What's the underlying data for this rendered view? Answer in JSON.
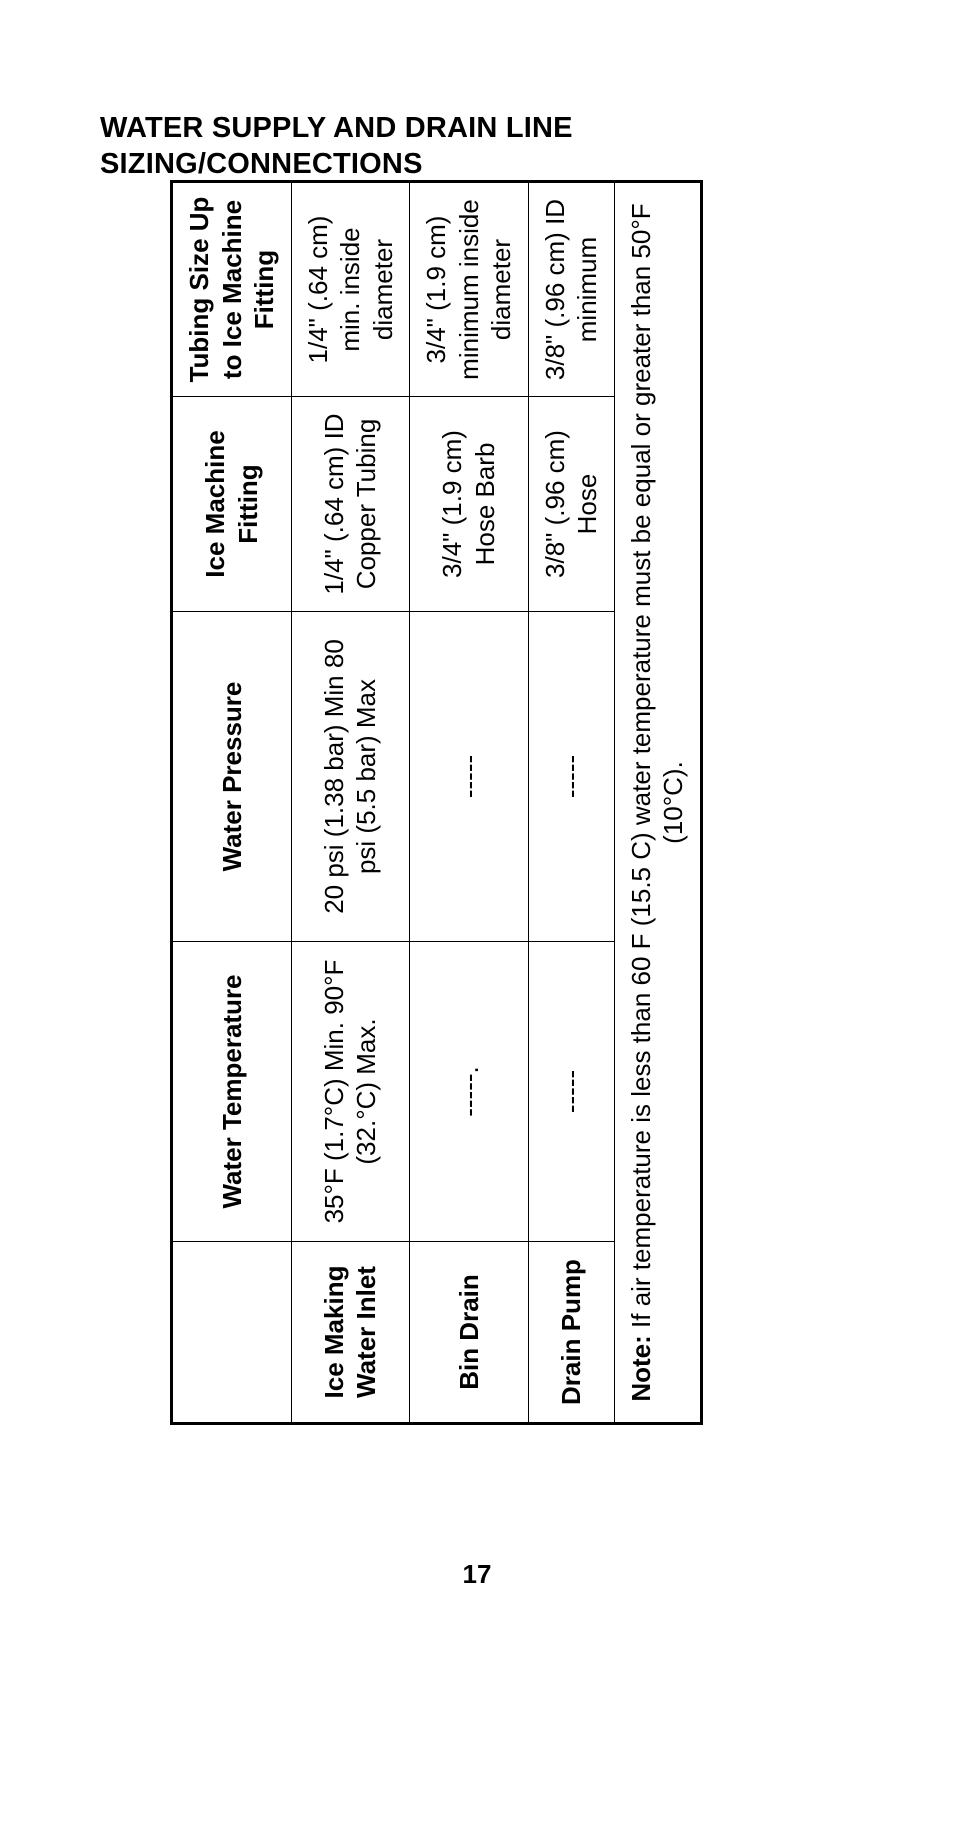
{
  "heading": "WATER SUPPLY AND DRAIN LINE SIZING/CONNECTIONS",
  "pageNumber": "17",
  "table": {
    "headers": {
      "col0": "",
      "col1": "Water Temperature",
      "col2": "Water Pressure",
      "col3": "Ice Machine Fitting",
      "col4": "Tubing Size Up to Ice Machine Fitting"
    },
    "rows": [
      {
        "label": "Ice Making Water Inlet",
        "temp": "35°F (1.7°C) Min. 90°F (32.°C) Max.",
        "pressure": "20 psi (1.38 bar) Min 80 psi (5.5 bar) Max",
        "fitting": "1/4\" (.64 cm) ID Copper Tubing",
        "tubing": "1/4\" (.64 cm) min. inside diameter"
      },
      {
        "label": "Bin Drain",
        "temp": "-----.",
        "pressure": "-----",
        "fitting": "3/4\" (1.9 cm) Hose Barb",
        "tubing": "3/4\" (1.9 cm) minimum inside diameter"
      },
      {
        "label": "Drain Pump",
        "temp": "-----",
        "pressure": "-----",
        "fitting": "3/8\" (.96 cm) Hose",
        "tubing": "3/8\" (.96 cm) ID minimum"
      }
    ],
    "noteLabel": "Note:",
    "noteText": " If air temperature is less than 60 F (15.5 C) water temperature must be equal or greater than 50°F (10°C)."
  }
}
